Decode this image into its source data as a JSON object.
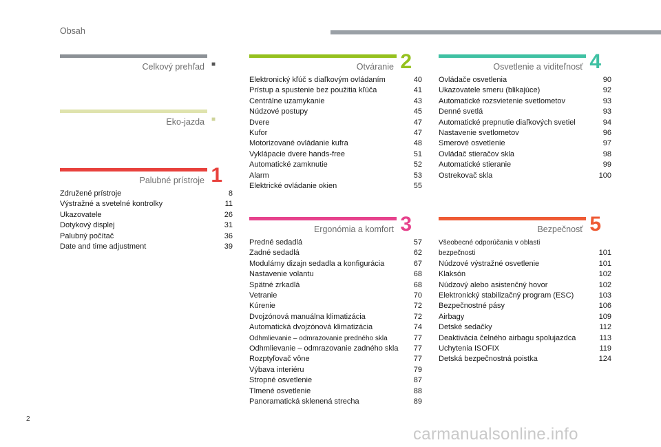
{
  "header": {
    "title": "Obsah"
  },
  "colors": {
    "gray": "#8c9196",
    "green_light": "#dfe3ad",
    "red": "#e8413c",
    "green": "#95c11f",
    "pink": "#e6428c",
    "teal": "#3fc1a3",
    "orange": "#ee5a34"
  },
  "sections": {
    "overview": {
      "title": "Celkový prehľad",
      "marker": "■"
    },
    "eco": {
      "title": "Eko-jazda",
      "marker": "■"
    },
    "instruments": {
      "title": "Palubné prístroje",
      "number": "1",
      "items": [
        {
          "label": "Združené prístroje",
          "page": "8"
        },
        {
          "label": "Výstražné a svetelné kontrolky",
          "page": "11"
        },
        {
          "label": "Ukazovatele",
          "page": "26"
        },
        {
          "label": "Dotykový displej",
          "page": "31"
        },
        {
          "label": "Palubný počítač",
          "page": "36"
        },
        {
          "label": "Date and time adjustment",
          "page": "39"
        }
      ]
    },
    "access": {
      "title": "Otváranie",
      "number": "2",
      "items": [
        {
          "label": "Elektronický kľúč s diaľkovým ovládaním",
          "page": "40"
        },
        {
          "label": "Prístup a spustenie bez použitia kľúča",
          "page": "41"
        },
        {
          "label": "Centrálne uzamykanie",
          "page": "43"
        },
        {
          "label": "Núdzové postupy",
          "page": "45"
        },
        {
          "label": "Dvere",
          "page": "47"
        },
        {
          "label": "Kufor",
          "page": "47"
        },
        {
          "label": "Motorizované ovládanie kufra",
          "page": "48"
        },
        {
          "label": "Vyklápacie dvere hands-free",
          "page": "51"
        },
        {
          "label": "Automatické zamknutie",
          "page": "52"
        },
        {
          "label": "Alarm",
          "page": "53"
        },
        {
          "label": "Elektrické ovládanie okien",
          "page": "55"
        }
      ]
    },
    "ergonomics": {
      "title": "Ergonómia a komfort",
      "number": "3",
      "items": [
        {
          "label": "Predné sedadlá",
          "page": "57"
        },
        {
          "label": "Zadné sedadlá",
          "page": "62"
        },
        {
          "label": "Modulárny dizajn sedadla a konfigurácia",
          "page": "67"
        },
        {
          "label": "Nastavenie volantu",
          "page": "68"
        },
        {
          "label": "Spätné zrkadlá",
          "page": "68"
        },
        {
          "label": "Vetranie",
          "page": "70"
        },
        {
          "label": "Kúrenie",
          "page": "72"
        },
        {
          "label": "Dvojzónová manuálna klimatizácia",
          "page": "72"
        },
        {
          "label": "Automatická dvojzónová klimatizácia",
          "page": "74"
        },
        {
          "label": "Odhmlievanie – odmrazovanie predného skla",
          "page": "77"
        },
        {
          "label": "Odhmlievanie – odmrazovanie zadného skla",
          "page": "77"
        },
        {
          "label": "Rozptyľovač vône",
          "page": "77"
        },
        {
          "label": "Výbava interiéru",
          "page": "79"
        },
        {
          "label": "Stropné osvetlenie",
          "page": "87"
        },
        {
          "label": "Tlmené osvetlenie",
          "page": "88"
        },
        {
          "label": "Panoramatická sklenená strecha",
          "page": "89"
        }
      ]
    },
    "lighting": {
      "title": "Osvetlenie a viditeľnosť",
      "number": "4",
      "items": [
        {
          "label": "Ovládače osvetlenia",
          "page": "90"
        },
        {
          "label": "Ukazovatele smeru (blikajúce)",
          "page": "92"
        },
        {
          "label": "Automatické rozsvietenie svetlometov",
          "page": "93"
        },
        {
          "label": "Denné svetlá",
          "page": "93"
        },
        {
          "label": "Automatické prepnutie diaľkových svetiel",
          "page": "94"
        },
        {
          "label": "Nastavenie svetlometov",
          "page": "96"
        },
        {
          "label": "Smerové osvetlenie",
          "page": "97"
        },
        {
          "label": "Ovládač stieračov skla",
          "page": "98"
        },
        {
          "label": "Automatické stieranie",
          "page": "99"
        },
        {
          "label": "Ostrekovač skla",
          "page": "100"
        }
      ]
    },
    "safety": {
      "title": "Bezpečnosť",
      "number": "5",
      "items": [
        {
          "label": "Všeobecné odporúčania v oblasti bezpečnosti",
          "page": "101"
        },
        {
          "label": "Núdzové výstražné osvetlenie",
          "page": "101"
        },
        {
          "label": "Klaksón",
          "page": "102"
        },
        {
          "label": "Núdzový alebo asistenčný hovor",
          "page": "102"
        },
        {
          "label": "Elektronický stabilizačný program (ESC)",
          "page": "103"
        },
        {
          "label": "Bezpečnostné pásy",
          "page": "106"
        },
        {
          "label": "Airbagy",
          "page": "109"
        },
        {
          "label": "Detské sedačky",
          "page": "112"
        },
        {
          "label": "Deaktivácia čelného airbagu spolujazdca",
          "page": "113"
        },
        {
          "label": "Uchytenia ISOFIX",
          "page": "119"
        },
        {
          "label": "Detská bezpečnostná poistka",
          "page": "124"
        }
      ]
    }
  },
  "footer": {
    "page_number": "2",
    "watermark": "carmanualsonline.info"
  }
}
